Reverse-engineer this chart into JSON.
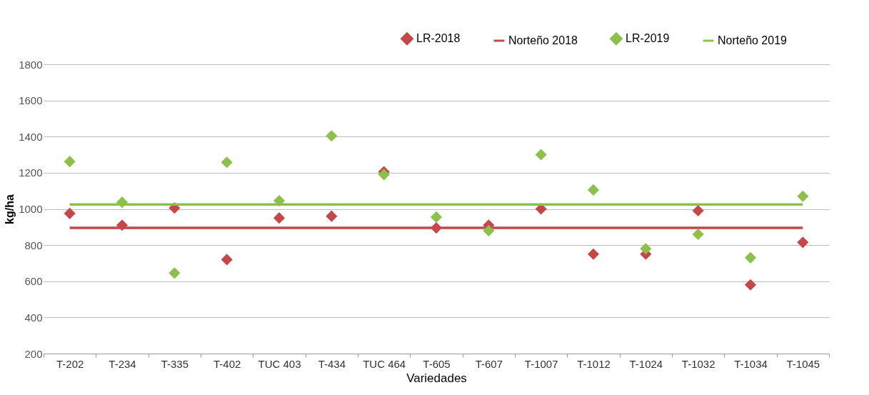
{
  "chart_data": {
    "type": "scatter",
    "xlabel": "Variedades",
    "ylabel": "kg/ha",
    "categories": [
      "T-202",
      "T-234",
      "T-335",
      "T-402",
      "TUC 403",
      "T-434",
      "TUC 464",
      "T-605",
      "T-607",
      "T-1007",
      "T-1012",
      "T-1024",
      "T-1032",
      "T-1034",
      "T-1045"
    ],
    "series": [
      {
        "name": "LR-2018",
        "marker": "diamond",
        "color": "#c4474a",
        "values": [
          975,
          910,
          1005,
          720,
          950,
          960,
          1205,
          895,
          910,
          1000,
          750,
          750,
          990,
          580,
          815
        ]
      },
      {
        "name": "Norteño 2018",
        "type": "line",
        "marker": "none",
        "color": "#c4474a",
        "values": [
          895,
          895,
          895,
          895,
          895,
          895,
          895,
          895,
          895,
          895,
          895,
          895,
          895,
          895,
          895
        ]
      },
      {
        "name": "LR-2019",
        "marker": "diamond",
        "color": "#8dc04b",
        "values": [
          1262,
          1037,
          645,
          1258,
          1045,
          1404,
          1190,
          955,
          880,
          1300,
          1105,
          780,
          860,
          730,
          1070
        ]
      },
      {
        "name": "Norteño 2019",
        "type": "line",
        "marker": "none",
        "color": "#8dc04b",
        "values": [
          1025,
          1025,
          1025,
          1025,
          1025,
          1025,
          1025,
          1025,
          1025,
          1025,
          1025,
          1025,
          1025,
          1025,
          1025
        ]
      }
    ],
    "ylim": [
      200,
      1800
    ],
    "yticks": [
      200,
      400,
      600,
      800,
      1000,
      1200,
      1400,
      1600,
      1800
    ],
    "grid": "y",
    "legend": "top right"
  }
}
